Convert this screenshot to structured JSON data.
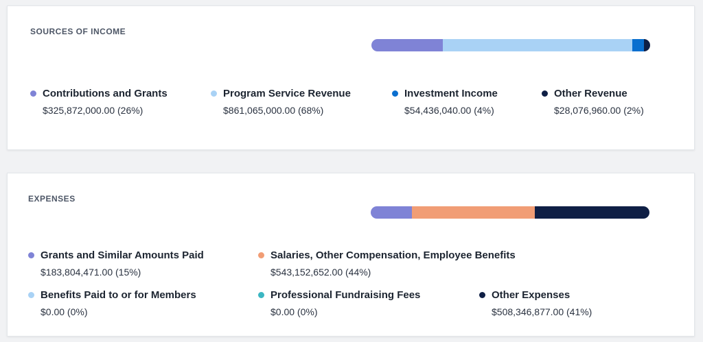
{
  "chart_data": [
    {
      "type": "bar",
      "orientation": "horizontal-stacked",
      "title": "SOURCES OF INCOME",
      "categories": [
        "Contributions and Grants",
        "Program Service Revenue",
        "Investment Income",
        "Other Revenue"
      ],
      "values": [
        325872000.0,
        861065000.0,
        54436040.0,
        28076960.0
      ],
      "value_labels": [
        "$325,872,000.00 (26%)",
        "$861,065,000.00 (68%)",
        "$54,436,040.00 (4%)",
        "$28,076,960.00 (2%)"
      ],
      "colors": [
        "#7f83d6",
        "#a9d2f5",
        "#0a6fcf",
        "#0f1f45"
      ]
    },
    {
      "type": "bar",
      "orientation": "horizontal-stacked",
      "title": "EXPENSES",
      "categories": [
        "Grants and Similar Amounts Paid",
        "Salaries, Other Compensation, Employee Benefits",
        "Benefits Paid to or for Members",
        "Professional Fundraising Fees",
        "Other Expenses"
      ],
      "values": [
        183804471.0,
        543152652.0,
        0.0,
        0.0,
        508346877.0
      ],
      "value_labels": [
        "$183,804,471.00 (15%)",
        "$543,152,652.00 (44%)",
        "$0.00 (0%)",
        "$0.00 (0%)",
        "$508,346,877.00 (41%)"
      ],
      "colors": [
        "#7f83d6",
        "#f19d75",
        "#a9d2f5",
        "#3bb6c2",
        "#0f1f45"
      ]
    }
  ]
}
